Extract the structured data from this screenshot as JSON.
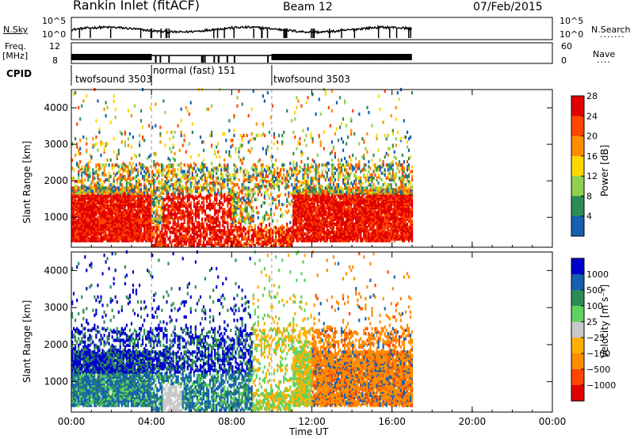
{
  "header": {
    "station": "Rankin Inlet (fitACF)",
    "beam": "Beam 12",
    "date": "07/Feb/2015"
  },
  "aux_panels": {
    "nsky_label": "N.Sky",
    "nsky_ticks": [
      "10^5",
      "10^0"
    ],
    "nsearch_label": "N.Search",
    "nsearch_ticks": [
      "10^5",
      "10^0"
    ],
    "freq_label": "Freq.",
    "freq_unit": "[MHz]",
    "freq_ticks": [
      "12",
      "8"
    ],
    "nave_label": "Nave",
    "nave_ticks": [
      "60",
      "0"
    ],
    "cpid_label": "CPID",
    "cpid_segments": [
      {
        "name": "twofsound 3503",
        "start_h": 0.0,
        "end_h": 4.0
      },
      {
        "name": "normal (fast) 151",
        "start_h": 4.0,
        "end_h": 10.0
      },
      {
        "name": "twofsound 3503",
        "start_h": 10.0,
        "end_h": 24.0
      }
    ]
  },
  "chart_data": [
    {
      "type": "heatmap",
      "title": "",
      "xlabel": "Time UT",
      "ylabel": "Slant Range [km]",
      "xlim": [
        0,
        24
      ],
      "ylim": [
        180,
        4500
      ],
      "x_ticks": [
        "00:00",
        "04:00",
        "08:00",
        "12:00",
        "16:00",
        "20:00",
        "00:00"
      ],
      "y_ticks": [
        1000,
        2000,
        3000,
        4000
      ],
      "colorbar": {
        "label": "Power [dB]",
        "ticks": [
          "4",
          "8",
          "12",
          "16",
          "20",
          "24",
          "28"
        ],
        "colors": [
          "#0000ff",
          "#1560b0",
          "#2e8b57",
          "#8fd14f",
          "#ffd700",
          "#ff8c00",
          "#ff4500",
          "#e00000"
        ]
      },
      "data_extent_h": [
        0.0,
        17.0
      ]
    },
    {
      "type": "heatmap",
      "title": "",
      "xlabel": "Time UT",
      "ylabel": "Slant Range [km]",
      "xlim": [
        0,
        24
      ],
      "ylim": [
        180,
        4500
      ],
      "x_ticks": [
        "00:00",
        "04:00",
        "08:00",
        "12:00",
        "16:00",
        "20:00",
        "00:00"
      ],
      "y_ticks": [
        1000,
        2000,
        3000,
        4000
      ],
      "colorbar": {
        "label": "Velocity [m s⁻¹]",
        "ticks": [
          "1000",
          "500",
          "100",
          "25",
          "−25",
          "−100",
          "−500",
          "−1000"
        ],
        "colors": [
          "#0000cd",
          "#1560b0",
          "#2e8b57",
          "#5fd35f",
          "#c8c8c8",
          "#ffb000",
          "#ff8c00",
          "#ff4500",
          "#e00000"
        ]
      },
      "data_extent_h": [
        0.0,
        17.0
      ]
    }
  ]
}
